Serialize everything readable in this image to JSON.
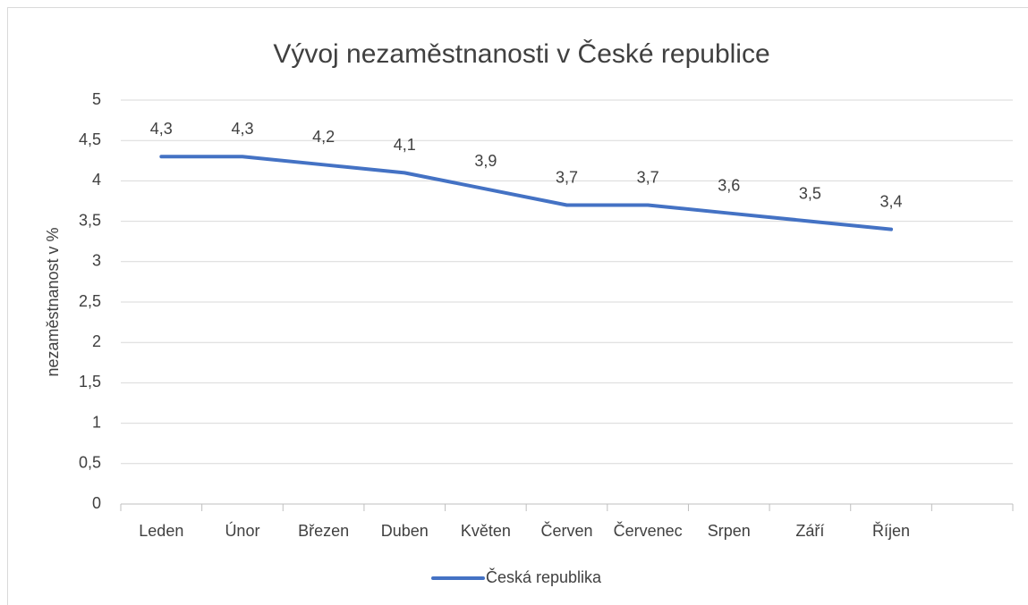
{
  "chart_data": {
    "type": "line",
    "title": "Vývoj nezaměstnanosti v České republice",
    "y_label": "nezaměstnanost v %",
    "categories": [
      "Leden",
      "Únor",
      "Březen",
      "Duben",
      "Květen",
      "Červen",
      "Červenec",
      "Srpen",
      "Září",
      "Říjen",
      null
    ],
    "series": [
      {
        "name": "Česká republika",
        "color": "#4472c4",
        "values": [
          4.3,
          4.3,
          4.2,
          4.1,
          3.9,
          3.7,
          3.7,
          3.6,
          3.5,
          3.4,
          null
        ],
        "value_labels": [
          "4,3",
          "4,3",
          "4,2",
          "4,1",
          "3,9",
          "3,7",
          "3,7",
          "3,6",
          "3,5",
          "3,4",
          null
        ]
      }
    ],
    "ylim": [
      0,
      5
    ],
    "yticks": [
      0,
      {
        "value": 0.5,
        "label": "0,5"
      },
      1,
      {
        "value": 1.5,
        "label": "1,5"
      },
      2,
      {
        "value": 2.5,
        "label": "2,5"
      },
      3,
      {
        "value": 3.5,
        "label": "3,5"
      },
      4,
      {
        "value": 4.5,
        "label": "4,5"
      },
      5
    ],
    "grid": true,
    "legend": "bottom"
  }
}
